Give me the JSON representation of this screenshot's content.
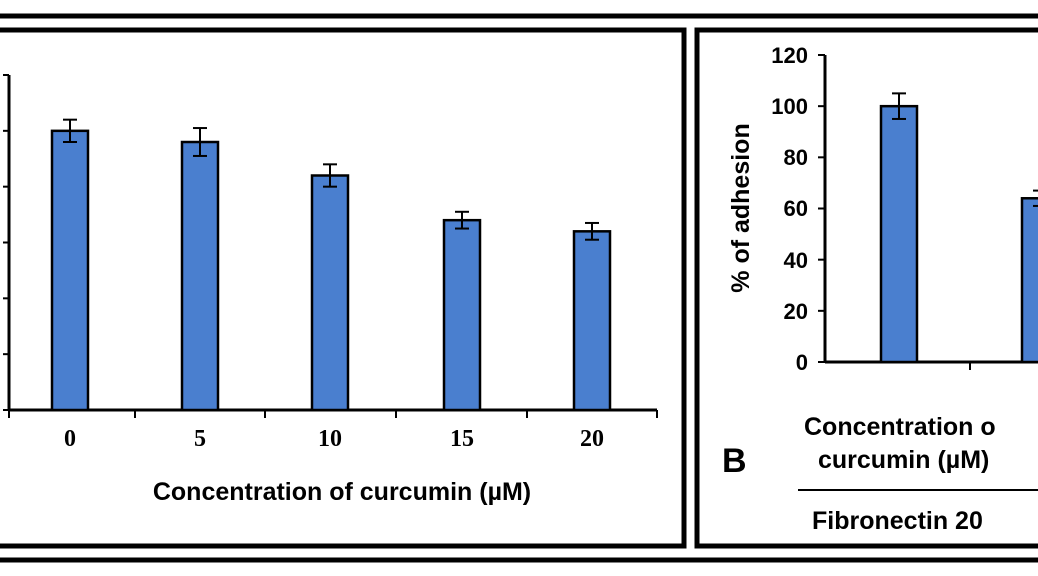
{
  "chart_data": [
    {
      "type": "bar",
      "title": "",
      "xlabel": "Concentration of curcumin (µM)",
      "ylabel": "",
      "categories": [
        "0",
        "5",
        "10",
        "15",
        "20"
      ],
      "values": [
        100,
        96,
        84,
        68,
        64
      ],
      "errors": [
        4,
        5,
        4,
        3,
        3
      ],
      "ylim": [
        0,
        120
      ],
      "bar_color": "#4a7fcf"
    },
    {
      "type": "bar",
      "title": "",
      "panel_label": "B",
      "ylabel": "% of adhesion",
      "yticks": [
        "0",
        "20",
        "40",
        "60",
        "80",
        "100",
        "120"
      ],
      "ylim": [
        0,
        120
      ],
      "values": [
        100,
        64
      ],
      "errors": [
        5,
        3
      ],
      "xlabel_line1": "Concentration o",
      "xlabel_line2": "curcumin (µM)",
      "group_label": "Fibronectin 20",
      "bar_color": "#4a7fcf"
    }
  ]
}
